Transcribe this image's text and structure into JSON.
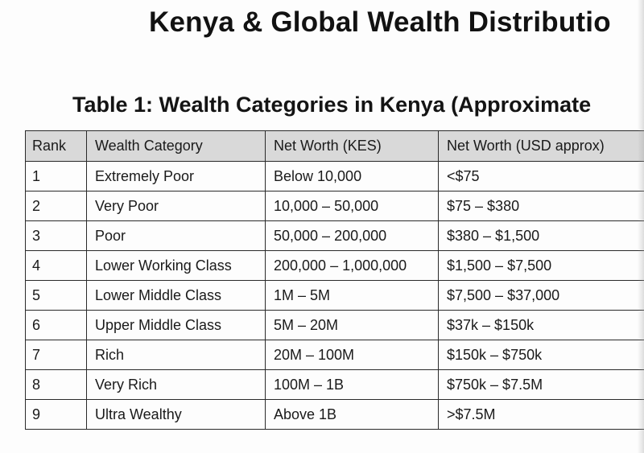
{
  "document": {
    "title": "Kenya & Global Wealth Distributio",
    "table_caption": "Table 1: Wealth Categories in Kenya (Approximate"
  },
  "table": {
    "headers": {
      "rank": "Rank",
      "category": "Wealth Category",
      "net_worth_kes": "Net Worth (KES)",
      "net_worth_usd": "Net Worth (USD approx)"
    },
    "rows": [
      {
        "rank": "1",
        "category": "Extremely Poor",
        "kes": "Below 10,000",
        "usd": "<$75"
      },
      {
        "rank": "2",
        "category": "Very Poor",
        "kes": "10,000 – 50,000",
        "usd": "$75 – $380"
      },
      {
        "rank": "3",
        "category": "Poor",
        "kes": "50,000 – 200,000",
        "usd": "$380 – $1,500"
      },
      {
        "rank": "4",
        "category": "Lower Working Class",
        "kes": "200,000 – 1,000,000",
        "usd": "$1,500 – $7,500"
      },
      {
        "rank": "5",
        "category": "Lower Middle Class",
        "kes": "1M – 5M",
        "usd": "$7,500 – $37,000"
      },
      {
        "rank": "6",
        "category": "Upper Middle Class",
        "kes": "5M – 20M",
        "usd": "$37k – $150k"
      },
      {
        "rank": "7",
        "category": "Rich",
        "kes": "20M – 100M",
        "usd": "$150k – $750k"
      },
      {
        "rank": "8",
        "category": "Very Rich",
        "kes": "100M – 1B",
        "usd": "$750k – $7.5M"
      },
      {
        "rank": "9",
        "category": "Ultra Wealthy",
        "kes": "Above 1B",
        "usd": ">$7.5M"
      }
    ]
  },
  "colors": {
    "header_background": "#d9d9d9",
    "border": "#2a2a2a",
    "text": "#111111"
  }
}
